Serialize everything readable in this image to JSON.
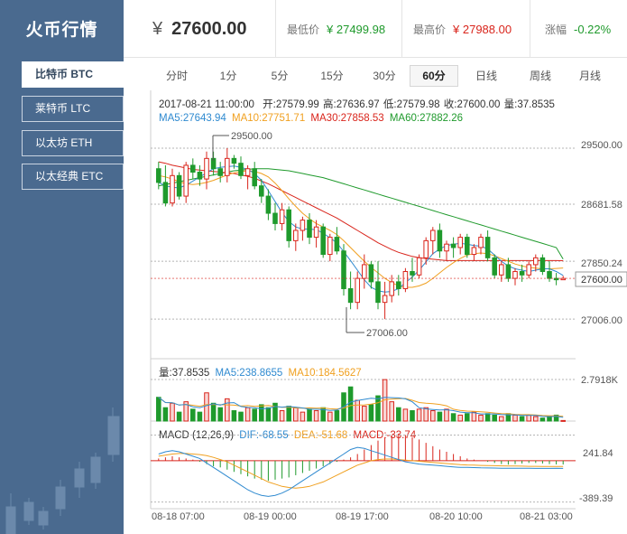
{
  "sidebar": {
    "title": "火币行情",
    "items": [
      {
        "label": "比特币 BTC",
        "active": true
      },
      {
        "label": "莱特币 LTC",
        "active": false
      },
      {
        "label": "以太坊 ETH",
        "active": false
      },
      {
        "label": "以太经典 ETC",
        "active": false
      }
    ]
  },
  "header": {
    "currency_symbol": "¥",
    "price": "27600.00",
    "low_label": "最低价",
    "low_value": "¥ 27499.98",
    "high_label": "最高价",
    "high_value": "¥ 27988.00",
    "change_label": "涨幅",
    "change_value": "-0.22%"
  },
  "tabs": [
    {
      "label": "分时",
      "active": false
    },
    {
      "label": "1分",
      "active": false
    },
    {
      "label": "5分",
      "active": false
    },
    {
      "label": "15分",
      "active": false
    },
    {
      "label": "30分",
      "active": false
    },
    {
      "label": "60分",
      "active": true
    },
    {
      "label": "日线",
      "active": false
    },
    {
      "label": "周线",
      "active": false
    },
    {
      "label": "月线",
      "active": false
    }
  ],
  "colors": {
    "up": "#d9251c",
    "down": "#1f9a2c",
    "ma5": "#2f8ad0",
    "ma10": "#f0a020",
    "ma30": "#d9251c",
    "ma60": "#1f9a2c",
    "sidebar_bg": "#4a6a8f"
  },
  "chart_data": {
    "type": "candlestick",
    "info_line": {
      "time": "2017-08-21 11:00:00",
      "open": "开:27579.99",
      "high": "高:27636.97",
      "low": "低:27579.98",
      "close": "收:27600.00",
      "volume": "量:37.8535"
    },
    "ma_line": {
      "ma5": "MA5:27643.94",
      "ma10": "MA10:27751.71",
      "ma30": "MA30:27858.53",
      "ma60": "MA60:27882.26"
    },
    "price_axis": {
      "ticks": [
        29500.0,
        28681.58,
        27850.24,
        27006.0
      ],
      "tick_labels": [
        "29500.00",
        "28681.58",
        "27850.24",
        "27006.00"
      ],
      "current_price": 27600.0,
      "current_label": "27600.00",
      "range": [
        26850,
        29750
      ]
    },
    "annotations": {
      "max_label": "29500.00",
      "min_label": "27006.00"
    },
    "x_labels": [
      "08-18 07:00",
      "08-19 00:00",
      "08-19 17:00",
      "08-20 10:00",
      "08-21 03:00"
    ],
    "candles": [
      [
        29200,
        29300,
        28900,
        29000
      ],
      [
        29000,
        29250,
        28650,
        28700
      ],
      [
        28700,
        29200,
        28650,
        29100
      ],
      [
        29100,
        29150,
        28750,
        28800
      ],
      [
        28800,
        29300,
        28700,
        29250
      ],
      [
        29250,
        29350,
        29050,
        29150
      ],
      [
        29150,
        29250,
        28950,
        29050
      ],
      [
        29050,
        29450,
        28900,
        29350
      ],
      [
        29350,
        29450,
        29100,
        29200
      ],
      [
        29200,
        29300,
        29000,
        29100
      ],
      [
        29100,
        29500,
        29000,
        29350
      ],
      [
        29350,
        29400,
        29200,
        29280
      ],
      [
        29280,
        29380,
        29050,
        29100
      ],
      [
        29100,
        29250,
        28900,
        29200
      ],
      [
        29200,
        29300,
        28900,
        28950
      ],
      [
        28950,
        29050,
        28700,
        28800
      ],
      [
        28800,
        28900,
        28450,
        28550
      ],
      [
        28550,
        28700,
        28300,
        28400
      ],
      [
        28400,
        28700,
        28300,
        28600
      ],
      [
        28600,
        28650,
        28050,
        28150
      ],
      [
        28150,
        28400,
        28000,
        28300
      ],
      [
        28300,
        28500,
        28150,
        28450
      ],
      [
        28450,
        28550,
        28100,
        28200
      ],
      [
        28200,
        28450,
        28050,
        28350
      ],
      [
        28350,
        28400,
        27900,
        27950
      ],
      [
        27950,
        28250,
        27850,
        28200
      ],
      [
        28200,
        28350,
        27950,
        28000
      ],
      [
        28000,
        28100,
        27350,
        27450
      ],
      [
        27450,
        27700,
        27150,
        27250
      ],
      [
        27250,
        27700,
        27150,
        27600
      ],
      [
        27600,
        27950,
        27450,
        27800
      ],
      [
        27800,
        27850,
        27450,
        27550
      ],
      [
        27550,
        27850,
        27150,
        27250
      ],
      [
        27250,
        27550,
        27006,
        27350
      ],
      [
        27350,
        27650,
        27250,
        27550
      ],
      [
        27550,
        27650,
        27350,
        27450
      ],
      [
        27450,
        27750,
        27400,
        27700
      ],
      [
        27700,
        27900,
        27550,
        27650
      ],
      [
        27650,
        27950,
        27600,
        27900
      ],
      [
        27900,
        28200,
        27800,
        28150
      ],
      [
        28150,
        28350,
        27950,
        28300
      ],
      [
        28300,
        28400,
        27900,
        28000
      ],
      [
        28000,
        28150,
        27850,
        28100
      ],
      [
        28100,
        28200,
        27900,
        28050
      ],
      [
        28050,
        28250,
        27950,
        28200
      ],
      [
        28200,
        28250,
        27900,
        27950
      ],
      [
        27950,
        28100,
        27850,
        28050
      ],
      [
        28050,
        28250,
        27950,
        28200
      ],
      [
        28200,
        28300,
        27850,
        27900
      ],
      [
        27900,
        27950,
        27600,
        27650
      ],
      [
        27650,
        27850,
        27550,
        27800
      ],
      [
        27800,
        27900,
        27550,
        27600
      ],
      [
        27600,
        27750,
        27500,
        27700
      ],
      [
        27700,
        27800,
        27550,
        27650
      ],
      [
        27650,
        27850,
        27600,
        27800
      ],
      [
        27800,
        27950,
        27700,
        27900
      ],
      [
        27900,
        27950,
        27650,
        27700
      ],
      [
        27700,
        27850,
        27550,
        27600
      ],
      [
        27600,
        27680,
        27500,
        27580
      ],
      [
        27580,
        27637,
        27580,
        27600
      ]
    ],
    "ma_series": {
      "ma5": [
        29000,
        28950,
        28930,
        28920,
        28960,
        29020,
        29080,
        29140,
        29200,
        29220,
        29230,
        29240,
        29220,
        29190,
        29130,
        29030,
        28880,
        28720,
        28560,
        28430,
        28350,
        28320,
        28320,
        28310,
        28260,
        28190,
        28120,
        27990,
        27860,
        27720,
        27580,
        27470,
        27420,
        27400,
        27410,
        27450,
        27540,
        27620,
        27720,
        27840,
        27960,
        28030,
        28080,
        28100,
        28110,
        28100,
        28080,
        28070,
        28030,
        27940,
        27850,
        27780,
        27740,
        27720,
        27700,
        27720,
        27740,
        27740,
        27700,
        27644
      ],
      "ma10": [
        29100,
        29080,
        29050,
        29010,
        28980,
        28970,
        28980,
        29000,
        29030,
        29070,
        29110,
        29140,
        29160,
        29170,
        29160,
        29130,
        29080,
        28990,
        28880,
        28760,
        28650,
        28550,
        28470,
        28400,
        28350,
        28300,
        28240,
        28150,
        28050,
        27950,
        27850,
        27760,
        27680,
        27600,
        27540,
        27490,
        27470,
        27470,
        27490,
        27530,
        27600,
        27680,
        27760,
        27830,
        27890,
        27940,
        27960,
        27970,
        27960,
        27930,
        27890,
        27850,
        27810,
        27780,
        27760,
        27750,
        27740,
        27740,
        27745,
        27752
      ],
      "ma30": [
        29300,
        29280,
        29250,
        29230,
        29210,
        29190,
        29180,
        29170,
        29160,
        29150,
        29140,
        29130,
        29110,
        29090,
        29060,
        29020,
        28980,
        28930,
        28880,
        28830,
        28780,
        28730,
        28680,
        28630,
        28580,
        28530,
        28480,
        28420,
        28360,
        28300,
        28240,
        28180,
        28120,
        28070,
        28020,
        27980,
        27950,
        27920,
        27900,
        27890,
        27880,
        27870,
        27860,
        27860,
        27860,
        27860,
        27860,
        27860,
        27860,
        27860,
        27860,
        27860,
        27860,
        27860,
        27860,
        27860,
        27860,
        27860,
        27860,
        27859
      ],
      "ma60": [
        28950,
        28970,
        28990,
        29010,
        29030,
        29050,
        29070,
        29090,
        29110,
        29130,
        29150,
        29170,
        29180,
        29190,
        29200,
        29200,
        29200,
        29190,
        29180,
        29170,
        29150,
        29130,
        29110,
        29090,
        29070,
        29040,
        29010,
        28980,
        28950,
        28920,
        28890,
        28860,
        28830,
        28800,
        28770,
        28740,
        28710,
        28680,
        28650,
        28620,
        28590,
        28560,
        28530,
        28500,
        28470,
        28440,
        28410,
        28380,
        28350,
        28320,
        28290,
        28260,
        28230,
        28200,
        28170,
        28140,
        28110,
        28080,
        28050,
        27882
      ]
    },
    "volume": {
      "label": "量:37.8535",
      "ma5_label": "MA5:238.8655",
      "ma10_label": "MA10:184.5627",
      "axis_label": "2.7918K",
      "range": [
        0,
        2800
      ],
      "values": [
        1600,
        900,
        1200,
        600,
        1300,
        800,
        600,
        1900,
        1200,
        900,
        1500,
        700,
        600,
        900,
        800,
        1100,
        900,
        1200,
        700,
        1000,
        900,
        600,
        800,
        700,
        900,
        600,
        700,
        1900,
        2300,
        1400,
        1000,
        1100,
        1700,
        2792,
        1300,
        900,
        800,
        700,
        800,
        900,
        700,
        600,
        800,
        500,
        400,
        500,
        600,
        400,
        500,
        400,
        300,
        500,
        400,
        300,
        400,
        300,
        200,
        300,
        400,
        38
      ]
    },
    "macd": {
      "title": "MACD (12,26,9)",
      "dif_label": "DIF:-68.55",
      "dea_label": "DEA:-51.68",
      "macd_label": "MACD:-33.74",
      "tick_labels": [
        "241.84",
        "-389.39"
      ],
      "range": [
        -389.39,
        241.84
      ],
      "hist": [
        20,
        30,
        40,
        30,
        20,
        10,
        -10,
        -30,
        -50,
        -60,
        -80,
        -100,
        -120,
        -140,
        -160,
        -170,
        -180,
        -170,
        -160,
        -150,
        -130,
        -110,
        -90,
        -70,
        -50,
        -30,
        -10,
        10,
        30,
        60,
        100,
        140,
        180,
        210,
        230,
        240,
        230,
        210,
        190,
        160,
        130,
        100,
        80,
        60,
        40,
        20,
        10,
        0,
        -10,
        -20,
        -30,
        -35,
        -30,
        -25,
        -20,
        -20,
        -25,
        -30,
        -33,
        -34
      ],
      "dif": [
        60,
        80,
        90,
        80,
        60,
        40,
        20,
        -20,
        -60,
        -100,
        -140,
        -180,
        -220,
        -260,
        -290,
        -310,
        -320,
        -310,
        -290,
        -260,
        -220,
        -180,
        -140,
        -100,
        -60,
        -20,
        20,
        60,
        100,
        120,
        110,
        90,
        70,
        50,
        30,
        10,
        -10,
        -20,
        -30,
        -35,
        -40,
        -45,
        -50,
        -55,
        -60,
        -60,
        -62,
        -64,
        -65,
        -66,
        -67,
        -68,
        -68,
        -68,
        -68,
        -69,
        -69,
        -69,
        -68,
        -68.55
      ],
      "dea": [
        40,
        50,
        60,
        65,
        65,
        60,
        55,
        45,
        30,
        10,
        -10,
        -40,
        -70,
        -100,
        -130,
        -160,
        -190,
        -210,
        -230,
        -240,
        -245,
        -240,
        -230,
        -210,
        -190,
        -160,
        -130,
        -100,
        -70,
        -40,
        -20,
        0,
        10,
        15,
        15,
        10,
        5,
        0,
        -5,
        -10,
        -15,
        -20,
        -25,
        -30,
        -35,
        -38,
        -40,
        -42,
        -44,
        -45,
        -46,
        -47,
        -48,
        -49,
        -50,
        -50,
        -51,
        -51,
        -51.5,
        -51.68
      ]
    }
  }
}
